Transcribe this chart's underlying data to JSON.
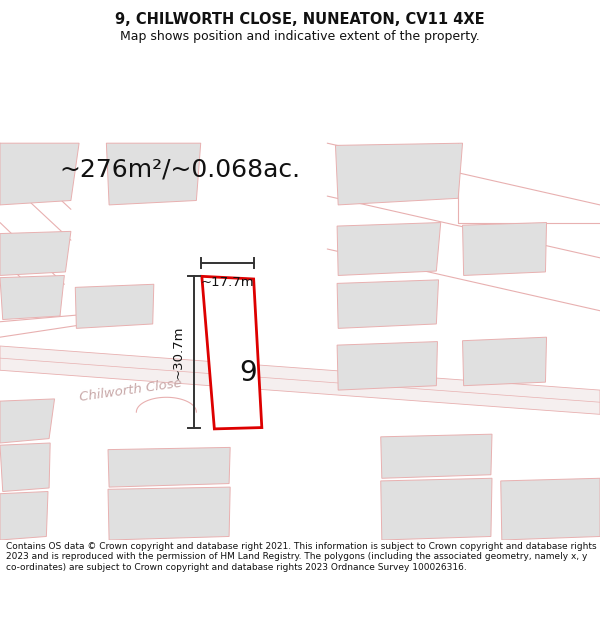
{
  "title_line1": "9, CHILWORTH CLOSE, NUNEATON, CV11 4XE",
  "title_line2": "Map shows position and indicative extent of the property.",
  "area_text": "~276m²/~0.068ac.",
  "dim_width": "~17.7m",
  "dim_height": "~30.7m",
  "plot_number": "9",
  "street_name": "Chilworth Close",
  "footer_text": "Contains OS data © Crown copyright and database right 2021. This information is subject to Crown copyright and database rights 2023 and is reproduced with the permission of HM Land Registry. The polygons (including the associated geometry, namely x, y co-ordinates) are subject to Crown copyright and database rights 2023 Ordnance Survey 100026316.",
  "bg_color": "#ffffff",
  "map_bg": "#faf6f6",
  "building_fill": "#e0e0e0",
  "plot_fill": "#ffffff",
  "plot_border": "#dd0000",
  "road_line": "#e8b0b0",
  "road_fill": "#f5efef",
  "dim_line_color": "#333333",
  "title_color": "#111111",
  "footer_color": "#111111",
  "street_label_color": "#c8a8a8"
}
